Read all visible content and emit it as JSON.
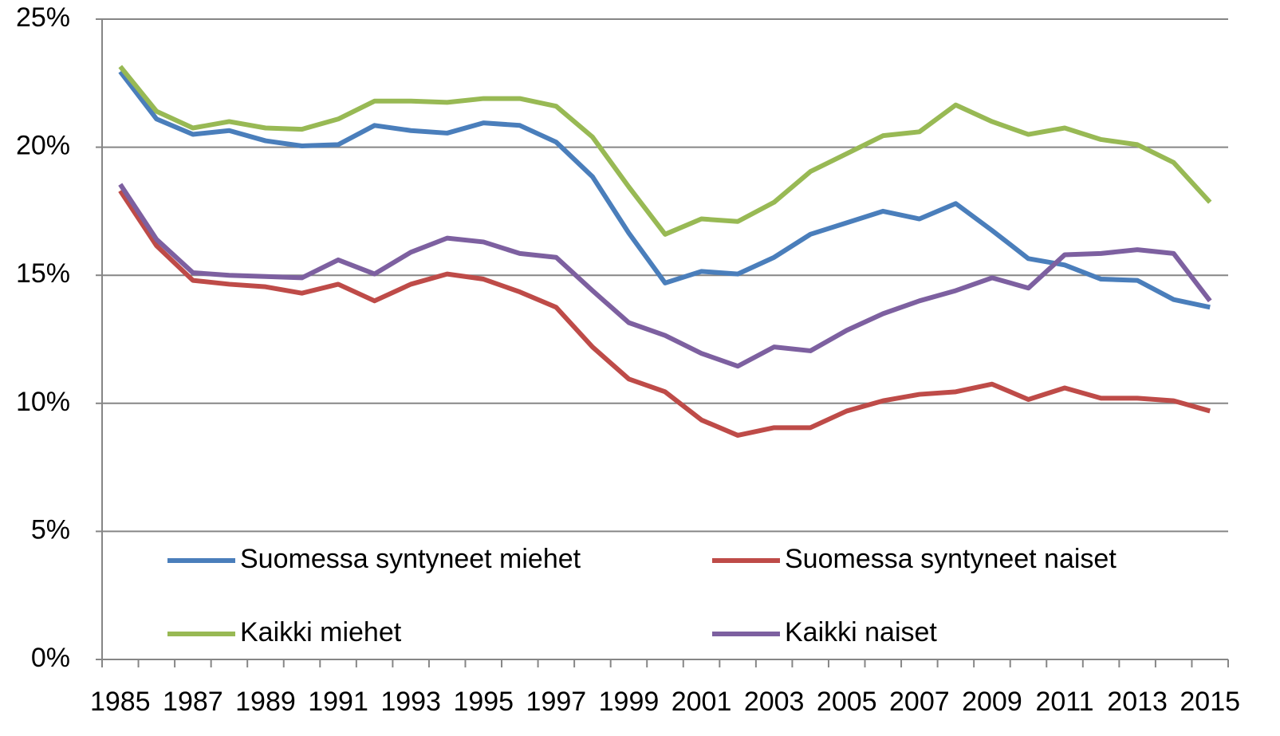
{
  "chart_data": {
    "type": "line",
    "categories": [
      "1985",
      null,
      "1987",
      null,
      "1989",
      null,
      "1991",
      null,
      "1993",
      null,
      "1995",
      null,
      "1997",
      null,
      "1999",
      null,
      "2001",
      null,
      "2003",
      null,
      "2005",
      null,
      "2007",
      null,
      "2009",
      null,
      "2011",
      null,
      "2013",
      null,
      "2015"
    ],
    "series": [
      {
        "name": "Suomessa syntyneet miehet",
        "color": "#4a7ebb",
        "values": [
          22.95,
          21.1,
          20.5,
          20.65,
          20.25,
          20.05,
          20.1,
          20.85,
          20.65,
          20.55,
          20.95,
          20.85,
          20.2,
          18.85,
          16.65,
          14.7,
          15.15,
          15.05,
          15.7,
          16.6,
          17.05,
          17.5,
          17.2,
          17.8,
          16.75,
          15.65,
          15.4,
          14.85,
          14.8,
          14.05,
          13.75
        ]
      },
      {
        "name": "Suomessa syntyneet naiset",
        "color": "#be4b48",
        "values": [
          18.3,
          16.15,
          14.8,
          14.65,
          14.55,
          14.3,
          14.65,
          14.0,
          14.65,
          15.05,
          14.85,
          14.35,
          13.75,
          12.2,
          10.95,
          10.45,
          9.35,
          8.75,
          9.05,
          9.05,
          9.7,
          10.1,
          10.35,
          10.45,
          10.75,
          10.15,
          10.6,
          10.2,
          10.2,
          10.1,
          9.7
        ]
      },
      {
        "name": "Kaikki miehet",
        "color": "#98b954",
        "values": [
          23.15,
          21.4,
          20.75,
          21.0,
          20.75,
          20.7,
          21.1,
          21.8,
          21.8,
          21.75,
          21.9,
          21.9,
          21.6,
          20.4,
          18.45,
          16.6,
          17.2,
          17.1,
          17.85,
          19.05,
          19.75,
          20.45,
          20.6,
          21.65,
          21.0,
          20.5,
          20.75,
          20.3,
          20.1,
          19.4,
          17.85
        ]
      },
      {
        "name": "Kaikki naiset",
        "color": "#7d60a0",
        "values": [
          18.55,
          16.4,
          15.1,
          15.0,
          14.95,
          14.9,
          15.6,
          15.05,
          15.9,
          16.45,
          16.3,
          15.85,
          15.7,
          14.4,
          13.15,
          12.65,
          11.95,
          11.45,
          12.2,
          12.05,
          12.85,
          13.5,
          14.0,
          14.4,
          14.9,
          14.5,
          15.8,
          15.85,
          16.0,
          15.85,
          14.0
        ]
      }
    ],
    "ylim": [
      0,
      25
    ],
    "yticks": [
      {
        "value": 0,
        "label": "0%"
      },
      {
        "value": 5,
        "label": "5%"
      },
      {
        "value": 10,
        "label": "10%"
      },
      {
        "value": 15,
        "label": "15%"
      },
      {
        "value": 20,
        "label": "20%"
      },
      {
        "value": 25,
        "label": "25%"
      }
    ],
    "grid": true,
    "legend": "lower left"
  }
}
